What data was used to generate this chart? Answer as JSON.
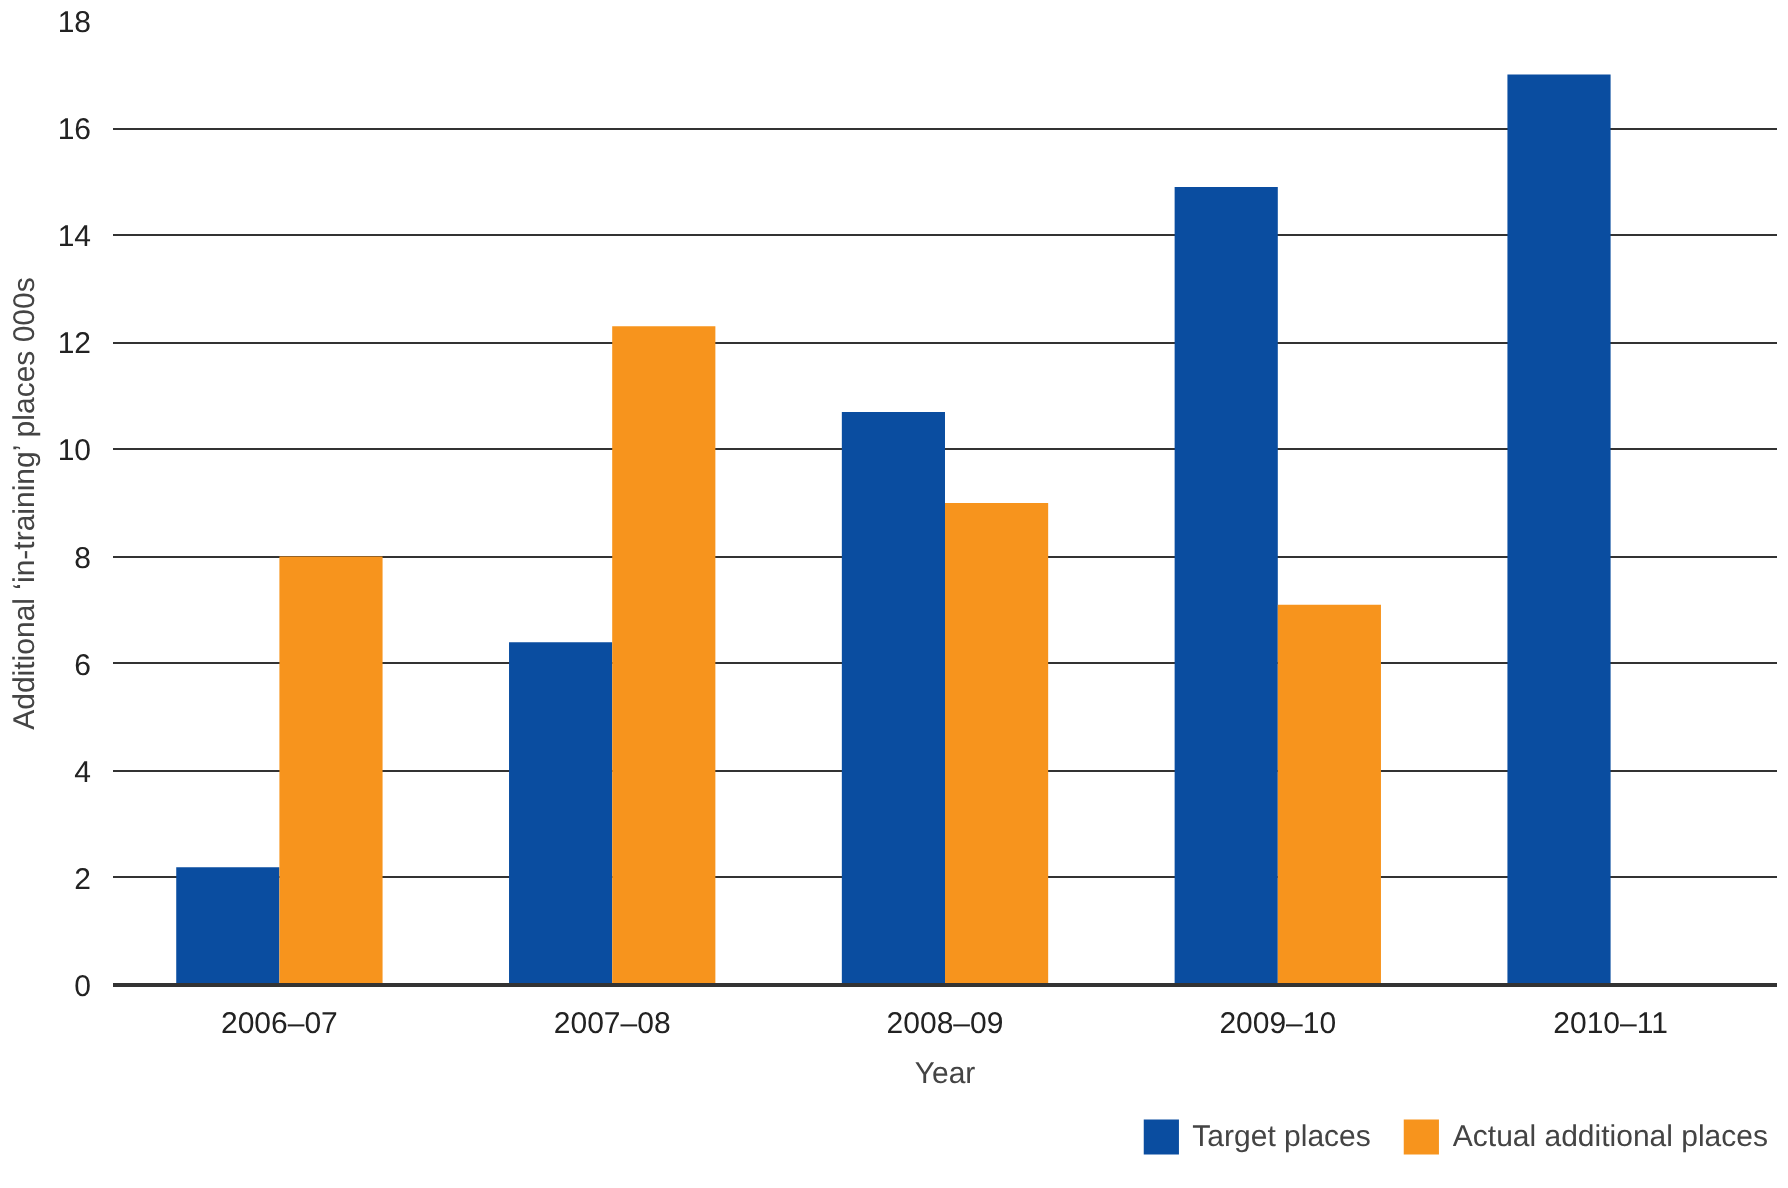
{
  "chart_data": {
    "type": "bar",
    "xlabel": "Year",
    "ylabel": "Additional ‘in-training’ places 000s",
    "categories": [
      "2006–07",
      "2007–08",
      "2008–09",
      "2009–10",
      "2010–11"
    ],
    "series": [
      {
        "name": "Target places",
        "color": "#0a4da0",
        "values": [
          2.2,
          6.4,
          10.7,
          14.9,
          17.0
        ]
      },
      {
        "name": "Actual additional places",
        "color": "#f7941d",
        "values": [
          8.0,
          12.3,
          9.0,
          7.1,
          null
        ]
      }
    ],
    "ylim": [
      0,
      18
    ],
    "yticks": [
      0,
      2,
      4,
      6,
      8,
      10,
      12,
      14,
      16,
      18
    ],
    "grid": "y",
    "legend": "bottom right"
  }
}
